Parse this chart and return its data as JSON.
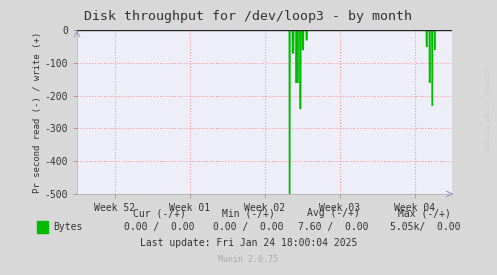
{
  "title": "Disk throughput for /dev/loop3 - by month",
  "ylabel": "Pr second read (-) / write (+)",
  "background_color": "#d8d8d8",
  "plot_background_color": "#eeeef8",
  "grid_color": "#ff9999",
  "title_color": "#333333",
  "ylim": [
    -500,
    0
  ],
  "yticks": [
    0,
    -100,
    -200,
    -300,
    -400,
    -500
  ],
  "xtick_labels": [
    "Week 52",
    "Week 01",
    "Week 02",
    "Week 03",
    "Week 04"
  ],
  "watermark": "RRDTOOL / TOBI OETIKER",
  "legend_label": "Bytes",
  "legend_color": "#00bb00",
  "cur_neg": "0.00",
  "cur_pos": "0.00",
  "min_neg": "0.00",
  "min_pos": "0.00",
  "avg_neg": "7.60",
  "avg_pos": "0.00",
  "max_neg": "5.05k/",
  "max_pos": "0.00",
  "last_update": "Last update: Fri Jan 24 18:00:04 2025",
  "munin_version": "Munin 2.0.75",
  "line_color": "#00bb00"
}
